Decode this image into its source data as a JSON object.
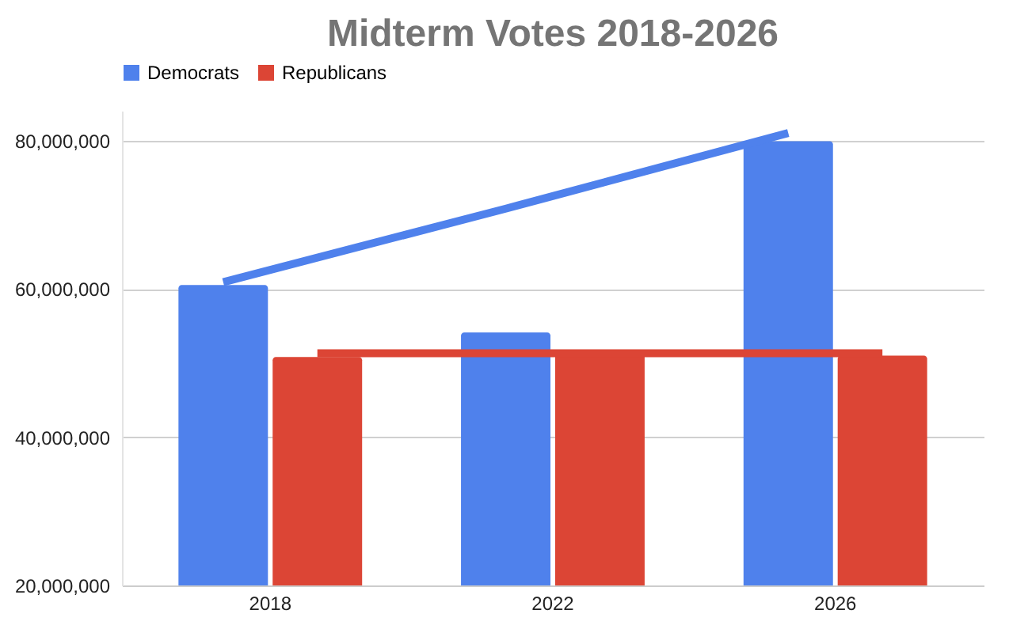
{
  "chart_data": {
    "type": "bar",
    "title": "Midterm Votes 2018-2026",
    "categories": [
      "2018",
      "2022",
      "2026"
    ],
    "series": [
      {
        "name": "Democrats",
        "color": "#4f81ec",
        "values": [
          60500000,
          54100000,
          79900000
        ]
      },
      {
        "name": "Republicans",
        "color": "#dc4535",
        "values": [
          50800000,
          51300000,
          51000000
        ]
      },
      {
        "type": "line",
        "color": "#4f81ec",
        "values": [
          60900000,
          70800000,
          81000000
        ]
      },
      {
        "type": "line",
        "color": "#dc4535",
        "values": [
          51300000,
          51300000,
          51300000
        ]
      }
    ],
    "ylim": [
      20000000,
      84000000
    ],
    "yticks": [
      {
        "value": 20000000,
        "label": "20,000,000"
      },
      {
        "value": 40000000,
        "label": "40,000,000"
      },
      {
        "value": 60000000,
        "label": "60,000,000"
      },
      {
        "value": 80000000,
        "label": "80,000,000"
      }
    ],
    "grid": "y",
    "legend": "top"
  }
}
